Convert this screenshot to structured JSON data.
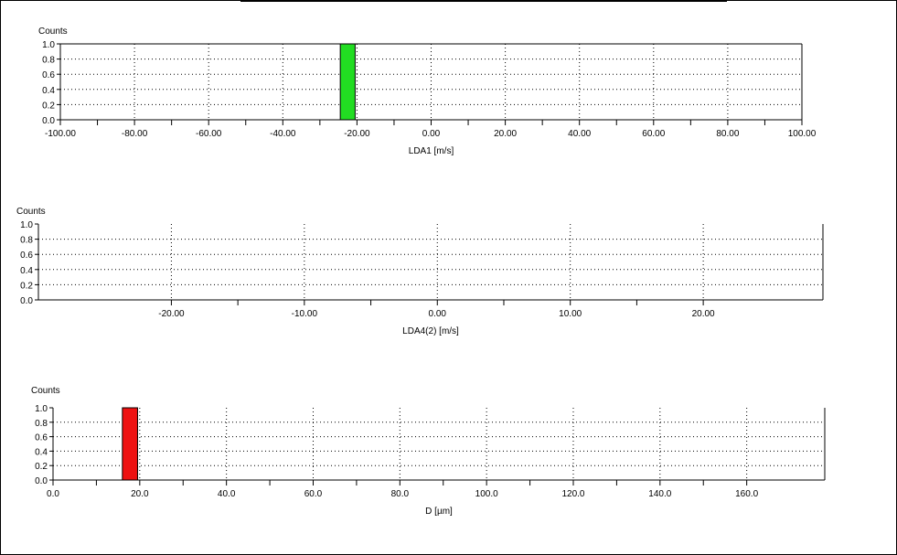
{
  "chart_data": [
    {
      "type": "bar",
      "ylabel": "Counts",
      "xlabel": "LDA1 [m/s]",
      "xlim": [
        -100,
        100
      ],
      "ylim": [
        0,
        1
      ],
      "xticks": [
        -100,
        -80,
        -60,
        -40,
        -20,
        0,
        20,
        40,
        60,
        80,
        100
      ],
      "xtick_labels": [
        "-100.00",
        "-80.00",
        "-60.00",
        "-40.00",
        "-20.00",
        "0.00",
        "20.00",
        "40.00",
        "60.00",
        "80.00",
        "100.00"
      ],
      "ytick_labels": [
        "0.0",
        "0.2",
        "0.4",
        "0.6",
        "0.8",
        "1.0"
      ],
      "bars": [
        {
          "x0": -24.5,
          "x1": -20.5,
          "value": 1.0
        }
      ],
      "bar_color": "#22dd22",
      "grid": true
    },
    {
      "type": "bar",
      "ylabel": "Counts",
      "xlabel": "LDA4(2) [m/s]",
      "xlim": [
        -30,
        29
      ],
      "ylim": [
        0,
        1
      ],
      "xticks": [
        -20,
        -10,
        0,
        10,
        20
      ],
      "xtick_labels": [
        "-20.00",
        "-10.00",
        "0.00",
        "10.00",
        "20.00"
      ],
      "ytick_labels": [
        "0.0",
        "0.2",
        "0.4",
        "0.6",
        "0.8",
        "1.0"
      ],
      "bars": [],
      "bar_color": "#22dd22",
      "grid": true
    },
    {
      "type": "bar",
      "ylabel": "Counts",
      "xlabel": "D [µm]",
      "xlim": [
        0,
        178
      ],
      "ylim": [
        0,
        1
      ],
      "xticks": [
        0,
        20,
        40,
        60,
        80,
        100,
        120,
        140,
        160
      ],
      "xtick_labels": [
        "0.0",
        "20.0",
        "40.0",
        "60.0",
        "80.0",
        "100.0",
        "120.0",
        "140.0",
        "160.0"
      ],
      "ytick_labels": [
        "0.0",
        "0.2",
        "0.4",
        "0.6",
        "0.8",
        "1.0"
      ],
      "bars": [
        {
          "x0": 16,
          "x1": 19.5,
          "value": 1.0
        }
      ],
      "bar_color": "#ee1111",
      "grid": true
    }
  ]
}
